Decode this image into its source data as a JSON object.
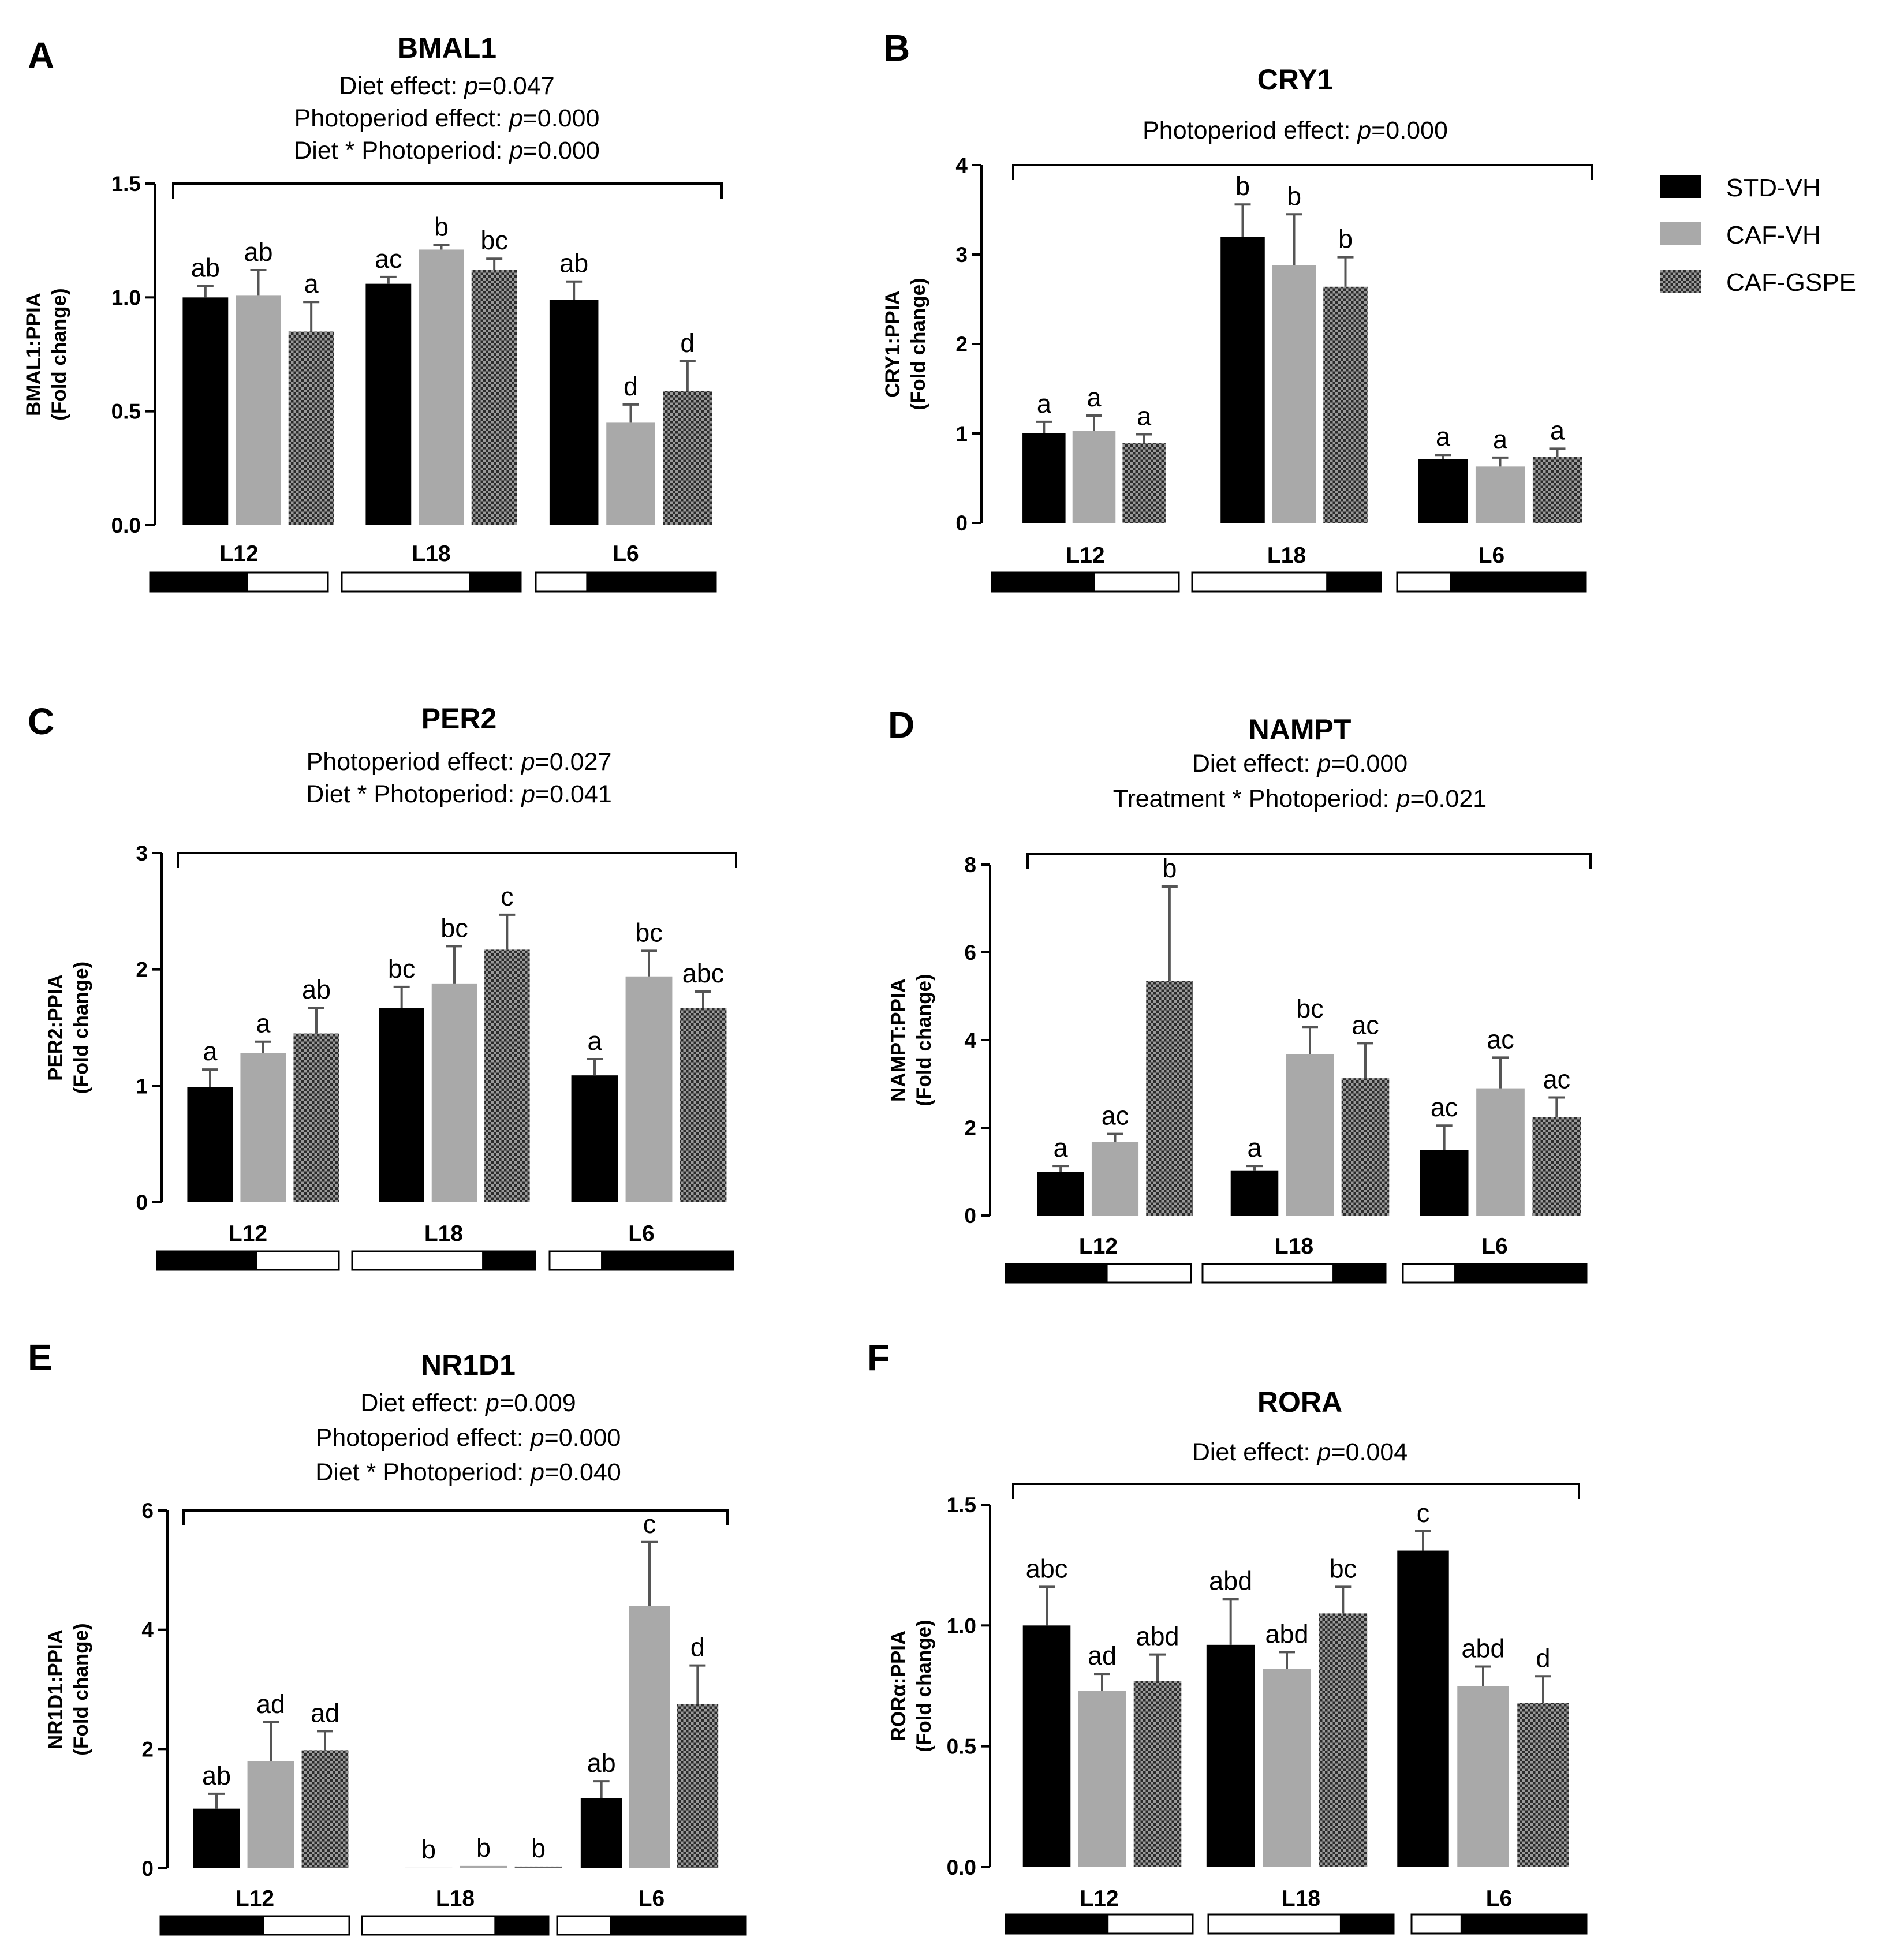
{
  "legend": [
    {
      "name": "STD-VH",
      "swatch": "black"
    },
    {
      "name": "CAF-VH",
      "swatch": "grey"
    },
    {
      "name": "CAF-GSPE",
      "swatch": "hatch"
    }
  ],
  "colors": {
    "std": "#000000",
    "caf": "#a9a9a9",
    "gspe_a": "#2b2b2b",
    "gspe_b": "#9a9a9a",
    "error": "#555555"
  },
  "chart_data": [
    {
      "panel": "A",
      "type": "bar",
      "title": "BMAL1",
      "stats": [
        "Diet effect: |p|=0.047",
        "Photoperiod effect: |p|=0.000",
        "Diet * Photoperiod: |p|=0.000"
      ],
      "ylabel": "BMAL1:PPIA",
      "ylabel2": "(Fold change)",
      "ylim": [
        0,
        1.5
      ],
      "yticks": [
        "0.0",
        "0.5",
        "1.0",
        "1.5"
      ],
      "categories": [
        "L12",
        "L18",
        "L6"
      ],
      "series": [
        {
          "name": "STD-VH",
          "values": [
            1.0,
            1.06,
            0.99
          ],
          "errors": [
            0.05,
            0.03,
            0.08
          ],
          "letters": [
            "ab",
            "ac",
            "ab"
          ]
        },
        {
          "name": "CAF-VH",
          "values": [
            1.01,
            1.21,
            0.45
          ],
          "errors": [
            0.11,
            0.02,
            0.08
          ],
          "letters": [
            "ab",
            "b",
            "d"
          ]
        },
        {
          "name": "CAF-GSPE",
          "values": [
            0.85,
            1.12,
            0.59
          ],
          "errors": [
            0.13,
            0.05,
            0.13
          ],
          "letters": [
            "a",
            "bc",
            "d"
          ]
        }
      ]
    },
    {
      "panel": "B",
      "type": "bar",
      "title": "CRY1",
      "stats": [
        "Photoperiod effect: |p|=0.000"
      ],
      "ylabel": "CRY1:PPIA",
      "ylabel2": "(Fold change)",
      "ylim": [
        0,
        4
      ],
      "yticks": [
        "0",
        "1",
        "2",
        "3",
        "4"
      ],
      "categories": [
        "L12",
        "L18",
        "L6"
      ],
      "series": [
        {
          "name": "STD-VH",
          "values": [
            1.0,
            3.2,
            0.71
          ],
          "errors": [
            0.13,
            0.36,
            0.05
          ],
          "letters": [
            "a",
            "b",
            "a"
          ]
        },
        {
          "name": "CAF-VH",
          "values": [
            1.03,
            2.88,
            0.63
          ],
          "errors": [
            0.17,
            0.57,
            0.1
          ],
          "letters": [
            "a",
            "b",
            "a"
          ]
        },
        {
          "name": "CAF-GSPE",
          "values": [
            0.89,
            2.64,
            0.74
          ],
          "errors": [
            0.1,
            0.33,
            0.09
          ],
          "letters": [
            "a",
            "b",
            "a"
          ]
        }
      ]
    },
    {
      "panel": "C",
      "type": "bar",
      "title": "PER2",
      "stats": [
        "Photoperiod effect: |p|=0.027",
        "Diet * Photoperiod: |p|=0.041"
      ],
      "ylabel": "PER2:PPIA",
      "ylabel2": "(Fold change)",
      "ylim": [
        0,
        3
      ],
      "yticks": [
        "0",
        "1",
        "2",
        "3"
      ],
      "categories": [
        "L12",
        "L18",
        "L6"
      ],
      "series": [
        {
          "name": "STD-VH",
          "values": [
            0.99,
            1.67,
            1.09
          ],
          "errors": [
            0.15,
            0.18,
            0.14
          ],
          "letters": [
            "a",
            "bc",
            "a"
          ]
        },
        {
          "name": "CAF-VH",
          "values": [
            1.28,
            1.88,
            1.94
          ],
          "errors": [
            0.1,
            0.32,
            0.22
          ],
          "letters": [
            "a",
            "bc",
            "bc"
          ]
        },
        {
          "name": "CAF-GSPE",
          "values": [
            1.45,
            2.17,
            1.67
          ],
          "errors": [
            0.22,
            0.3,
            0.14
          ],
          "letters": [
            "ab",
            "c",
            "abc"
          ]
        }
      ]
    },
    {
      "panel": "D",
      "type": "bar",
      "title": "NAMPT",
      "stats": [
        "Diet effect: |p|=0.000",
        "Treatment * Photoperiod: |p|=0.021"
      ],
      "ylabel": "NAMPT:PPIA",
      "ylabel2": "(Fold change)",
      "ylim": [
        0,
        8
      ],
      "yticks": [
        "0",
        "2",
        "4",
        "6",
        "8"
      ],
      "categories": [
        "L12",
        "L18",
        "L6"
      ],
      "series": [
        {
          "name": "STD-VH",
          "values": [
            1.0,
            1.03,
            1.5
          ],
          "errors": [
            0.13,
            0.1,
            0.55
          ],
          "letters": [
            "a",
            "a",
            "ac"
          ]
        },
        {
          "name": "CAF-VH",
          "values": [
            1.68,
            3.68,
            2.9
          ],
          "errors": [
            0.18,
            0.62,
            0.7
          ],
          "letters": [
            "ac",
            "bc",
            "ac"
          ]
        },
        {
          "name": "CAF-GSPE",
          "values": [
            5.35,
            3.13,
            2.24
          ],
          "errors": [
            2.15,
            0.8,
            0.45
          ],
          "letters": [
            "b",
            "ac",
            "ac"
          ]
        }
      ]
    },
    {
      "panel": "E",
      "type": "bar",
      "title": "NR1D1",
      "stats": [
        "Diet effect: |p|=0.009",
        "Photoperiod effect: |p|=0.000",
        "Diet * Photoperiod: |p|=0.040"
      ],
      "ylabel": "NR1D1:PPIA",
      "ylabel2": "(Fold change)",
      "ylim": [
        0,
        6
      ],
      "yticks": [
        "0",
        "2",
        "4",
        "6"
      ],
      "categories": [
        "L12",
        "L18",
        "L6"
      ],
      "series": [
        {
          "name": "STD-VH",
          "values": [
            1.0,
            0.01,
            1.18
          ],
          "errors": [
            0.25,
            0.0,
            0.28
          ],
          "letters": [
            "ab",
            "b",
            "ab"
          ]
        },
        {
          "name": "CAF-VH",
          "values": [
            1.8,
            0.04,
            4.4
          ],
          "errors": [
            0.65,
            0.0,
            1.07
          ],
          "letters": [
            "ad",
            "b",
            "c"
          ]
        },
        {
          "name": "CAF-GSPE",
          "values": [
            1.98,
            0.03,
            2.75
          ],
          "errors": [
            0.32,
            0.0,
            0.65
          ],
          "letters": [
            "ad",
            "b",
            "d"
          ]
        }
      ]
    },
    {
      "panel": "F",
      "type": "bar",
      "title": "RORA",
      "stats": [
        "Diet effect: |p|=0.004"
      ],
      "ylabel": "RORα:PPIA",
      "ylabel2": "(Fold change)",
      "ylim": [
        0,
        1.5
      ],
      "yticks": [
        "0.0",
        "0.5",
        "1.0",
        "1.5"
      ],
      "categories": [
        "L12",
        "L18",
        "L6"
      ],
      "series": [
        {
          "name": "STD-VH",
          "values": [
            1.0,
            0.92,
            1.31
          ],
          "errors": [
            0.16,
            0.19,
            0.08
          ],
          "letters": [
            "abc",
            "abd",
            "c"
          ]
        },
        {
          "name": "CAF-VH",
          "values": [
            0.73,
            0.82,
            0.75
          ],
          "errors": [
            0.07,
            0.07,
            0.08
          ],
          "letters": [
            "ad",
            "abd",
            "abd"
          ]
        },
        {
          "name": "CAF-GSPE",
          "values": [
            0.77,
            1.05,
            0.68
          ],
          "errors": [
            0.11,
            0.11,
            0.11
          ],
          "letters": [
            "abd",
            "bc",
            "d"
          ]
        }
      ]
    }
  ]
}
